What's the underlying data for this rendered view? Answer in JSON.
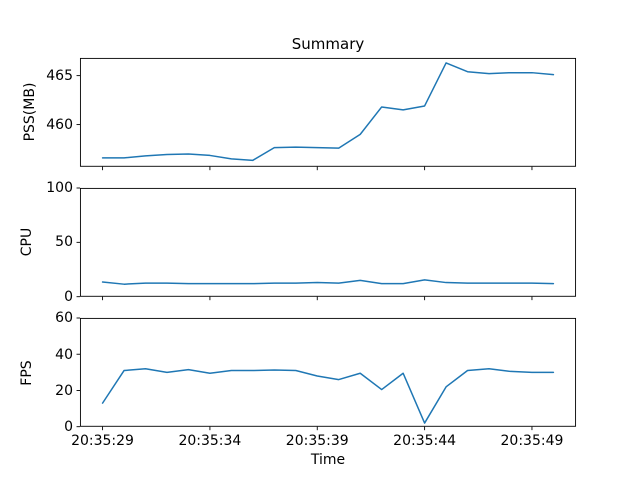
{
  "figure": {
    "title": "Summary",
    "background_color": "#ffffff",
    "line_color": "#1f77b4",
    "axes_frame_color": "#000000",
    "text_color": "#000000"
  },
  "x_axis": {
    "label": "Time",
    "tick_labels": [
      "20:35:29",
      "20:35:34",
      "20:35:39",
      "20:35:44",
      "20:35:49"
    ],
    "tick_positions": [
      0,
      5,
      10,
      15,
      20
    ],
    "points_start_time": "20:35:29",
    "points_interval_seconds": 1,
    "points_count": 22,
    "xlim_index": [
      -1.05,
      22.05
    ]
  },
  "chart_data": [
    {
      "type": "line",
      "title": "Summary",
      "xlabel": "",
      "ylabel": "PSS(MB)",
      "ylim": [
        455.7,
        466.8
      ],
      "yticks": [
        460,
        465
      ],
      "grid": false,
      "legend": "none",
      "values": [
        456.6,
        456.6,
        456.8,
        456.95,
        457.0,
        456.85,
        456.5,
        456.35,
        457.65,
        457.7,
        457.65,
        457.6,
        459.0,
        461.8,
        461.5,
        461.9,
        466.3,
        465.4,
        465.2,
        465.3,
        465.3,
        465.1
      ]
    },
    {
      "type": "line",
      "title": "",
      "xlabel": "",
      "ylabel": "CPU",
      "ylim": [
        0,
        100
      ],
      "yticks": [
        0,
        50,
        100
      ],
      "grid": false,
      "legend": "none",
      "values": [
        13.5,
        11.5,
        12.5,
        12.5,
        12,
        12,
        12,
        12,
        12.5,
        12.5,
        13,
        12.5,
        15,
        12,
        12,
        15.5,
        13,
        12.5,
        12.5,
        12.5,
        12.5,
        12
      ]
    },
    {
      "type": "line",
      "title": "",
      "xlabel": "Time",
      "ylabel": "FPS",
      "ylim": [
        0,
        60
      ],
      "yticks": [
        0,
        20,
        40,
        60
      ],
      "grid": false,
      "legend": "none",
      "values": [
        13,
        31,
        32,
        30,
        31.5,
        29.5,
        31,
        31,
        31.3,
        31,
        28,
        26,
        29.5,
        20.5,
        29.5,
        2,
        22,
        31,
        32,
        30.5,
        30,
        30
      ]
    }
  ]
}
